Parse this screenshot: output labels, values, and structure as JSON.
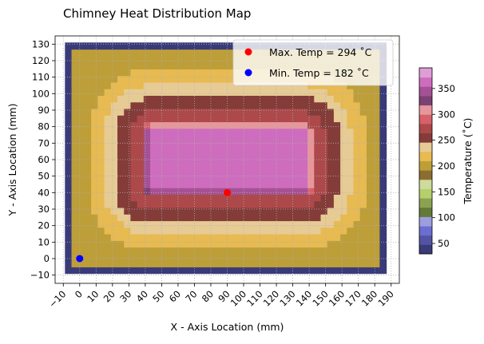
{
  "chart_data": {
    "type": "heatmap",
    "title": "Chimney Heat Distribution Map",
    "xlabel": "X - Axis Location (mm)",
    "ylabel": "Y - Axis Location (mm)",
    "colorbar_label": "Temperature ($^\\circ$C)",
    "colorbar_label_display": "Temperature (˚C)",
    "xlim": [
      -15,
      195
    ],
    "ylim": [
      -15,
      135
    ],
    "xticks": [
      -10,
      0,
      10,
      20,
      30,
      40,
      50,
      60,
      70,
      80,
      90,
      100,
      110,
      120,
      130,
      140,
      150,
      160,
      170,
      180,
      190
    ],
    "xtick_labels": [
      "−10",
      "0",
      "10",
      "20",
      "30",
      "40",
      "50",
      "60",
      "70",
      "80",
      "90",
      "100",
      "110",
      "120",
      "130",
      "140",
      "150",
      "160",
      "170",
      "180",
      "190"
    ],
    "yticks": [
      -10,
      0,
      10,
      20,
      30,
      40,
      50,
      60,
      70,
      80,
      90,
      100,
      110,
      120,
      130
    ],
    "ytick_labels": [
      "−10",
      "0",
      "10",
      "20",
      "30",
      "40",
      "50",
      "60",
      "70",
      "80",
      "90",
      "100",
      "110",
      "120",
      "130"
    ],
    "grid": true,
    "colorscale_range": [
      30,
      390
    ],
    "colorbar_ticks": [
      50,
      100,
      150,
      200,
      250,
      300,
      350
    ],
    "colormap": [
      "#393b79",
      "#5254a3",
      "#6b6ecf",
      "#9c9ede",
      "#637939",
      "#8ca252",
      "#b5cf6b",
      "#cedb9c",
      "#8c6d31",
      "#bd9e39",
      "#e7ba52",
      "#e7cb94",
      "#843c39",
      "#ad494a",
      "#d6616b",
      "#e7969c",
      "#7b4173",
      "#a55194",
      "#ce6dbd",
      "#de9ed6"
    ],
    "grid_spec": {
      "x_start": -7,
      "x_step": 4,
      "nx": 49,
      "y_start": -7,
      "y_step": 4,
      "ny": 35
    },
    "field_model": {
      "boundary_temp": 40,
      "inner_rect_x": [
        43,
        137
      ],
      "inner_rect_y": [
        43,
        77
      ],
      "inner_temp": 370,
      "distance_temp_profile": [
        [
          0,
          370
        ],
        [
          6,
          275
        ],
        [
          12,
          265
        ],
        [
          18,
          255
        ],
        [
          24,
          235
        ],
        [
          34,
          218
        ],
        [
          42,
          200
        ],
        [
          46,
          205
        ]
      ]
    },
    "markers": [
      {
        "name": "Max. Temp = 294 $^\\circ$C",
        "display": "Max. Temp = 294 ˚C",
        "x": 90,
        "y": 40,
        "color": "#ff0000",
        "temp": 294
      },
      {
        "name": "Min. Temp = 182 $^\\circ$C",
        "display": "Min. Temp = 182 ˚C",
        "x": 0,
        "y": 0,
        "color": "#0000ff",
        "temp": 182
      }
    ],
    "legend_location": "upper right"
  }
}
